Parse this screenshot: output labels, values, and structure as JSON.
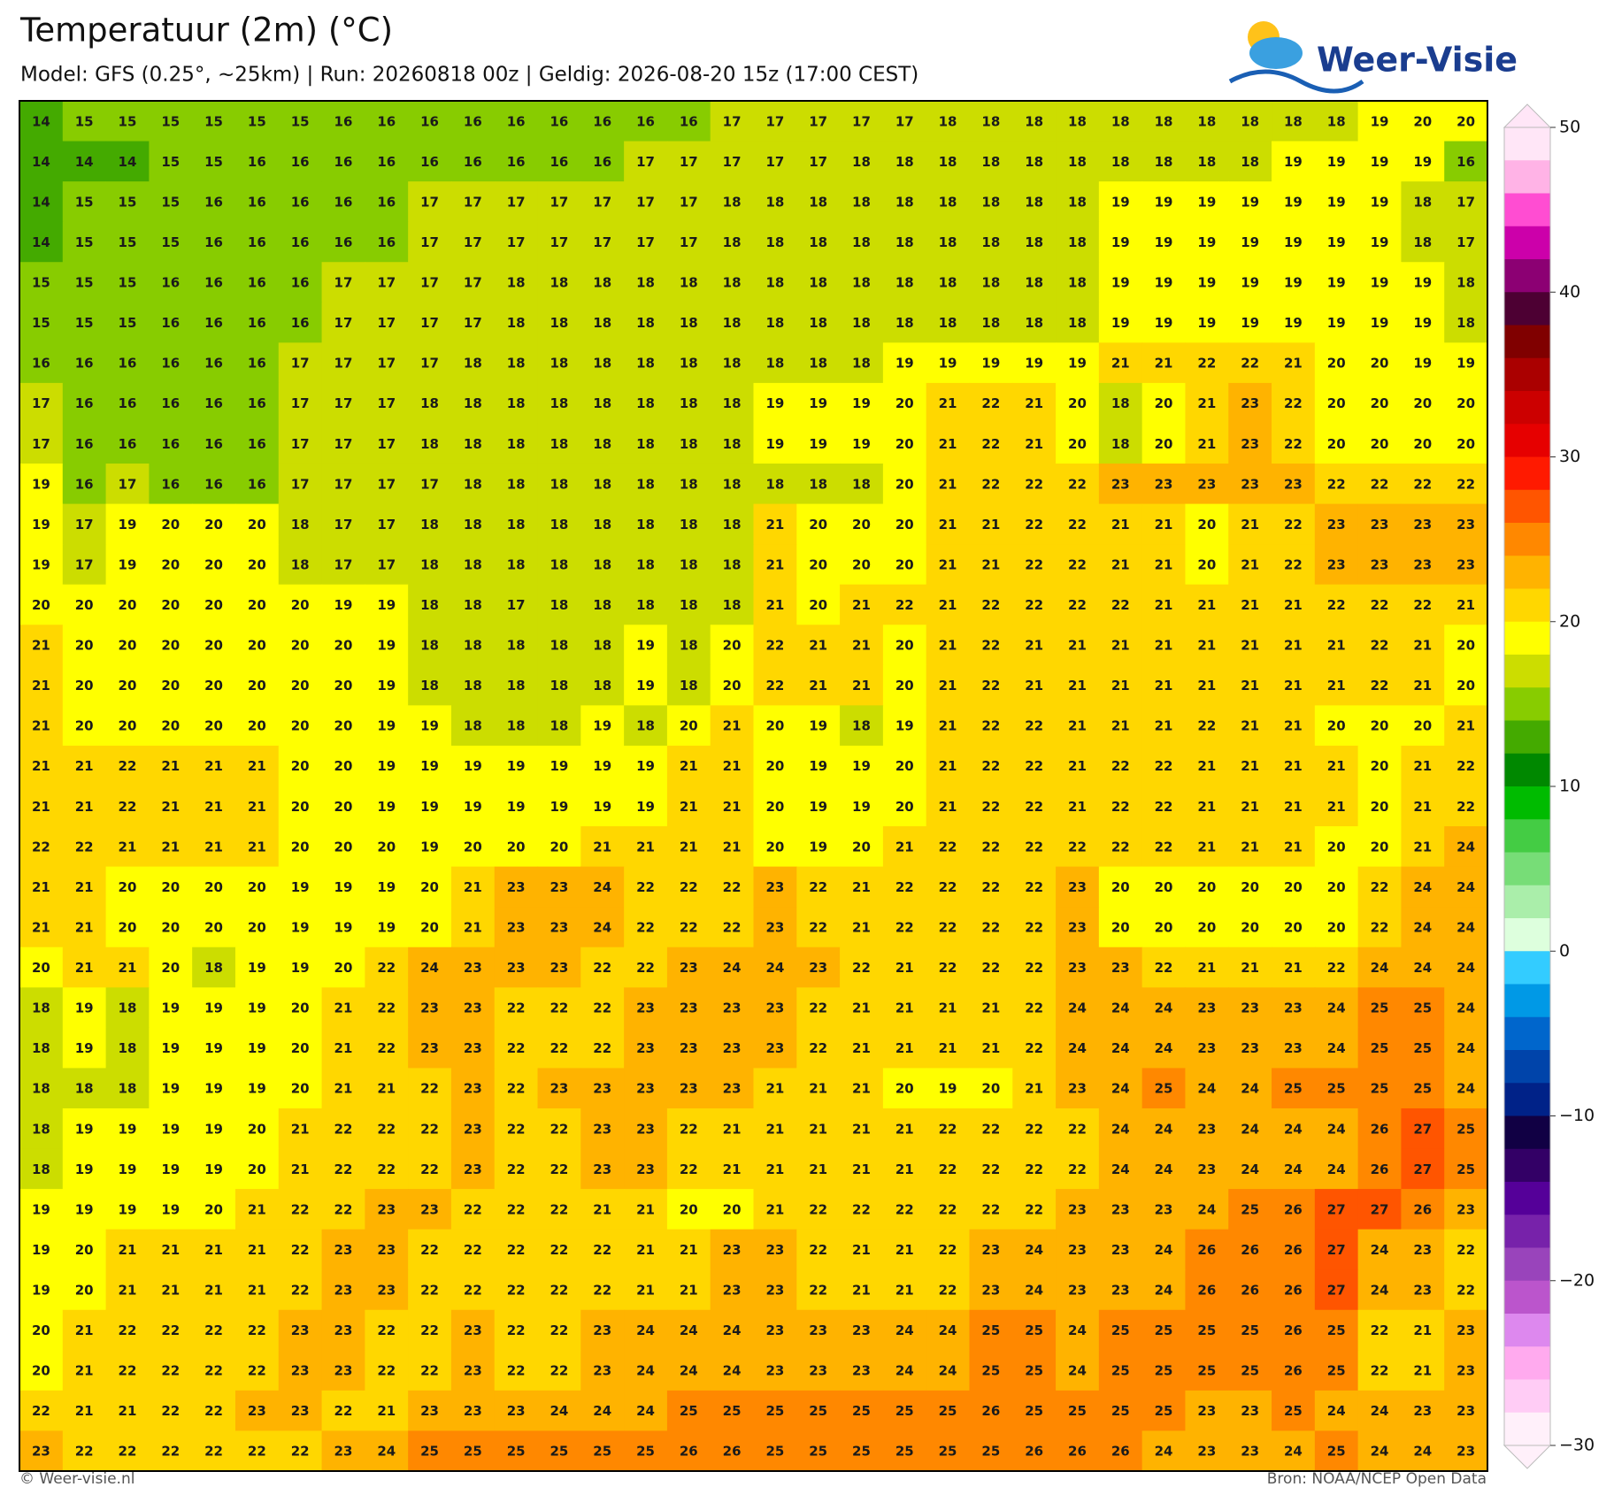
{
  "header": {
    "title": "Temperatuur (2m) (°C)",
    "subtitle": "Model: GFS (0.25°, ~25km)  |  Run: 20260818 00z  |  Geldig: 2026-08-20 15z (17:00 CEST)",
    "logo": "Weer-Visie"
  },
  "map": {
    "rows": [
      [
        14,
        15,
        15,
        15,
        15,
        15,
        15,
        16,
        16,
        16,
        16,
        16,
        16,
        16,
        16,
        16,
        17,
        17,
        17,
        17,
        17,
        18,
        18,
        18,
        18,
        18,
        18,
        18,
        18,
        18,
        18,
        19,
        20,
        20
      ],
      [
        14,
        14,
        14,
        15,
        15,
        16,
        16,
        16,
        16,
        16,
        16,
        16,
        16,
        16,
        17,
        17,
        17,
        17,
        17,
        18,
        18,
        18,
        18,
        18,
        18,
        18,
        18,
        18,
        18,
        19,
        19,
        19,
        19,
        16
      ],
      [
        14,
        15,
        15,
        15,
        16,
        16,
        16,
        16,
        16,
        17,
        17,
        17,
        17,
        17,
        17,
        17,
        18,
        18,
        18,
        18,
        18,
        18,
        18,
        18,
        18,
        19,
        19,
        19,
        19,
        19,
        19,
        19,
        18,
        17
      ],
      [
        14,
        15,
        15,
        15,
        16,
        16,
        16,
        16,
        16,
        17,
        17,
        17,
        17,
        17,
        17,
        17,
        18,
        18,
        18,
        18,
        18,
        18,
        18,
        18,
        18,
        19,
        19,
        19,
        19,
        19,
        19,
        19,
        18,
        17
      ],
      [
        15,
        15,
        15,
        16,
        16,
        16,
        16,
        17,
        17,
        17,
        17,
        18,
        18,
        18,
        18,
        18,
        18,
        18,
        18,
        18,
        18,
        18,
        18,
        18,
        18,
        19,
        19,
        19,
        19,
        19,
        19,
        19,
        19,
        18
      ],
      [
        15,
        15,
        15,
        16,
        16,
        16,
        16,
        17,
        17,
        17,
        17,
        18,
        18,
        18,
        18,
        18,
        18,
        18,
        18,
        18,
        18,
        18,
        18,
        18,
        18,
        19,
        19,
        19,
        19,
        19,
        19,
        19,
        19,
        18
      ],
      [
        16,
        16,
        16,
        16,
        16,
        16,
        17,
        17,
        17,
        17,
        18,
        18,
        18,
        18,
        18,
        18,
        18,
        18,
        18,
        18,
        19,
        19,
        19,
        19,
        19,
        21,
        21,
        22,
        22,
        21,
        20,
        20,
        19,
        19
      ],
      [
        17,
        16,
        16,
        16,
        16,
        16,
        17,
        17,
        17,
        18,
        18,
        18,
        18,
        18,
        18,
        18,
        18,
        19,
        19,
        19,
        20,
        21,
        22,
        21,
        20,
        18,
        20,
        21,
        23,
        22,
        20,
        20,
        20,
        20
      ],
      [
        17,
        16,
        16,
        16,
        16,
        16,
        17,
        17,
        17,
        18,
        18,
        18,
        18,
        18,
        18,
        18,
        18,
        19,
        19,
        19,
        20,
        21,
        22,
        21,
        20,
        18,
        20,
        21,
        23,
        22,
        20,
        20,
        20,
        20
      ],
      [
        19,
        16,
        17,
        16,
        16,
        16,
        17,
        17,
        17,
        17,
        18,
        18,
        18,
        18,
        18,
        18,
        18,
        18,
        18,
        18,
        20,
        21,
        22,
        22,
        22,
        23,
        23,
        23,
        23,
        23,
        22,
        22,
        22,
        22
      ],
      [
        19,
        17,
        19,
        20,
        20,
        20,
        18,
        17,
        17,
        18,
        18,
        18,
        18,
        18,
        18,
        18,
        18,
        21,
        20,
        20,
        20,
        21,
        21,
        22,
        22,
        21,
        21,
        20,
        21,
        22,
        23,
        23,
        23,
        23
      ],
      [
        19,
        17,
        19,
        20,
        20,
        20,
        18,
        17,
        17,
        18,
        18,
        18,
        18,
        18,
        18,
        18,
        18,
        21,
        20,
        20,
        20,
        21,
        21,
        22,
        22,
        21,
        21,
        20,
        21,
        22,
        23,
        23,
        23,
        23
      ],
      [
        20,
        20,
        20,
        20,
        20,
        20,
        20,
        19,
        19,
        18,
        18,
        17,
        18,
        18,
        18,
        18,
        18,
        21,
        20,
        21,
        22,
        21,
        22,
        22,
        22,
        22,
        21,
        21,
        21,
        21,
        22,
        22,
        22,
        21
      ],
      [
        21,
        20,
        20,
        20,
        20,
        20,
        20,
        20,
        19,
        18,
        18,
        18,
        18,
        18,
        19,
        18,
        20,
        22,
        21,
        21,
        20,
        21,
        22,
        21,
        21,
        21,
        21,
        21,
        21,
        21,
        21,
        22,
        21,
        20
      ],
      [
        21,
        20,
        20,
        20,
        20,
        20,
        20,
        20,
        19,
        18,
        18,
        18,
        18,
        18,
        19,
        18,
        20,
        22,
        21,
        21,
        20,
        21,
        22,
        21,
        21,
        21,
        21,
        21,
        21,
        21,
        21,
        22,
        21,
        20
      ],
      [
        21,
        20,
        20,
        20,
        20,
        20,
        20,
        20,
        19,
        19,
        18,
        18,
        18,
        19,
        18,
        20,
        21,
        20,
        19,
        18,
        19,
        21,
        22,
        22,
        21,
        21,
        21,
        22,
        21,
        21,
        20,
        20,
        20,
        21
      ],
      [
        21,
        21,
        22,
        21,
        21,
        21,
        20,
        20,
        19,
        19,
        19,
        19,
        19,
        19,
        19,
        21,
        21,
        20,
        19,
        19,
        20,
        21,
        22,
        22,
        21,
        22,
        22,
        21,
        21,
        21,
        21,
        20,
        21,
        22
      ],
      [
        21,
        21,
        22,
        21,
        21,
        21,
        20,
        20,
        19,
        19,
        19,
        19,
        19,
        19,
        19,
        21,
        21,
        20,
        19,
        19,
        20,
        21,
        22,
        22,
        21,
        22,
        22,
        21,
        21,
        21,
        21,
        20,
        21,
        22
      ],
      [
        22,
        22,
        21,
        21,
        21,
        21,
        20,
        20,
        20,
        19,
        20,
        20,
        20,
        21,
        21,
        21,
        21,
        20,
        19,
        20,
        21,
        22,
        22,
        22,
        22,
        22,
        22,
        21,
        21,
        21,
        20,
        20,
        21,
        24
      ],
      [
        21,
        21,
        20,
        20,
        20,
        20,
        19,
        19,
        19,
        20,
        21,
        23,
        23,
        24,
        22,
        22,
        22,
        23,
        22,
        21,
        22,
        22,
        22,
        22,
        23,
        20,
        20,
        20,
        20,
        20,
        20,
        22,
        24,
        24
      ],
      [
        21,
        21,
        20,
        20,
        20,
        20,
        19,
        19,
        19,
        20,
        21,
        23,
        23,
        24,
        22,
        22,
        22,
        23,
        22,
        21,
        22,
        22,
        22,
        22,
        23,
        20,
        20,
        20,
        20,
        20,
        20,
        22,
        24,
        24
      ],
      [
        20,
        21,
        21,
        20,
        18,
        19,
        19,
        20,
        22,
        24,
        23,
        23,
        23,
        22,
        22,
        23,
        24,
        24,
        23,
        22,
        21,
        22,
        22,
        22,
        23,
        23,
        22,
        21,
        21,
        21,
        22,
        24,
        24,
        24
      ],
      [
        18,
        19,
        18,
        19,
        19,
        19,
        20,
        21,
        22,
        23,
        23,
        22,
        22,
        22,
        23,
        23,
        23,
        23,
        22,
        21,
        21,
        21,
        21,
        22,
        24,
        24,
        24,
        23,
        23,
        23,
        24,
        25,
        25,
        24
      ],
      [
        18,
        19,
        18,
        19,
        19,
        19,
        20,
        21,
        22,
        23,
        23,
        22,
        22,
        22,
        23,
        23,
        23,
        23,
        22,
        21,
        21,
        21,
        21,
        22,
        24,
        24,
        24,
        23,
        23,
        23,
        24,
        25,
        25,
        24
      ],
      [
        18,
        18,
        18,
        19,
        19,
        19,
        20,
        21,
        21,
        22,
        23,
        22,
        23,
        23,
        23,
        23,
        23,
        21,
        21,
        21,
        20,
        19,
        20,
        21,
        23,
        24,
        25,
        24,
        24,
        25,
        25,
        25,
        25,
        24
      ],
      [
        18,
        19,
        19,
        19,
        19,
        20,
        21,
        22,
        22,
        22,
        23,
        22,
        22,
        23,
        23,
        22,
        21,
        21,
        21,
        21,
        21,
        22,
        22,
        22,
        22,
        24,
        24,
        23,
        24,
        24,
        24,
        26,
        27,
        25
      ],
      [
        18,
        19,
        19,
        19,
        19,
        20,
        21,
        22,
        22,
        22,
        23,
        22,
        22,
        23,
        23,
        22,
        21,
        21,
        21,
        21,
        21,
        22,
        22,
        22,
        22,
        24,
        24,
        23,
        24,
        24,
        24,
        26,
        27,
        25
      ],
      [
        19,
        19,
        19,
        19,
        20,
        21,
        22,
        22,
        23,
        23,
        22,
        22,
        22,
        21,
        21,
        20,
        20,
        21,
        22,
        22,
        22,
        22,
        22,
        22,
        23,
        23,
        23,
        24,
        25,
        26,
        27,
        27,
        26,
        23
      ],
      [
        19,
        20,
        21,
        21,
        21,
        21,
        22,
        23,
        23,
        22,
        22,
        22,
        22,
        22,
        21,
        21,
        23,
        23,
        22,
        21,
        21,
        22,
        23,
        24,
        23,
        23,
        24,
        26,
        26,
        26,
        27,
        24,
        23,
        22
      ],
      [
        19,
        20,
        21,
        21,
        21,
        21,
        22,
        23,
        23,
        22,
        22,
        22,
        22,
        22,
        21,
        21,
        23,
        23,
        22,
        21,
        21,
        22,
        23,
        24,
        23,
        23,
        24,
        26,
        26,
        26,
        27,
        24,
        23,
        22
      ],
      [
        20,
        21,
        22,
        22,
        22,
        22,
        23,
        23,
        22,
        22,
        23,
        22,
        22,
        23,
        24,
        24,
        24,
        23,
        23,
        23,
        24,
        24,
        25,
        25,
        24,
        25,
        25,
        25,
        25,
        26,
        25,
        22,
        21,
        23
      ],
      [
        20,
        21,
        22,
        22,
        22,
        22,
        23,
        23,
        22,
        22,
        23,
        22,
        22,
        23,
        24,
        24,
        24,
        23,
        23,
        23,
        24,
        24,
        25,
        25,
        24,
        25,
        25,
        25,
        25,
        26,
        25,
        22,
        21,
        23
      ],
      [
        22,
        21,
        21,
        22,
        22,
        23,
        23,
        22,
        21,
        23,
        23,
        23,
        24,
        24,
        24,
        25,
        25,
        25,
        25,
        25,
        25,
        25,
        26,
        25,
        25,
        25,
        25,
        23,
        23,
        25,
        24,
        24,
        23,
        23
      ],
      [
        23,
        22,
        22,
        22,
        22,
        22,
        22,
        23,
        24,
        25,
        25,
        25,
        25,
        25,
        25,
        26,
        26,
        25,
        25,
        25,
        25,
        25,
        25,
        26,
        26,
        26,
        24,
        23,
        23,
        24,
        25,
        24,
        24,
        23
      ]
    ]
  },
  "colorbar": {
    "lim": [
      -30,
      50
    ],
    "ticks": [
      50,
      40,
      30,
      20,
      10,
      0,
      {
        "value": -10,
        "label": "−10"
      },
      {
        "value": -20,
        "label": "−20"
      },
      {
        "value": -30,
        "label": "−30"
      }
    ],
    "colors": [
      "#ffe6f7",
      "#ffb3e6",
      "#ff4dd2",
      "#cc00aa",
      "#8c0073",
      "#4d0033",
      "#800000",
      "#aa0000",
      "#cc0000",
      "#e60000",
      "#ff1a00",
      "#ff5500",
      "#ff8800",
      "#ffb300",
      "#ffd700",
      "#ffff00",
      "#ccdd00",
      "#88cc00",
      "#44aa00",
      "#008800",
      "#00bb00",
      "#44cc44",
      "#77dd77",
      "#aaeeaa",
      "#ddffdd",
      "#33ccff",
      "#0099e6",
      "#0066cc",
      "#0044aa",
      "#002288",
      "#110044",
      "#330066",
      "#550099",
      "#7722aa",
      "#9944bb",
      "#bb55cc",
      "#dd88ee",
      "#ffaaee",
      "#ffccf5",
      "#fff0fa"
    ]
  },
  "footer": {
    "left": "© Weer-visie.nl",
    "right": "Bron: NOAA/NCEP Open Data"
  }
}
